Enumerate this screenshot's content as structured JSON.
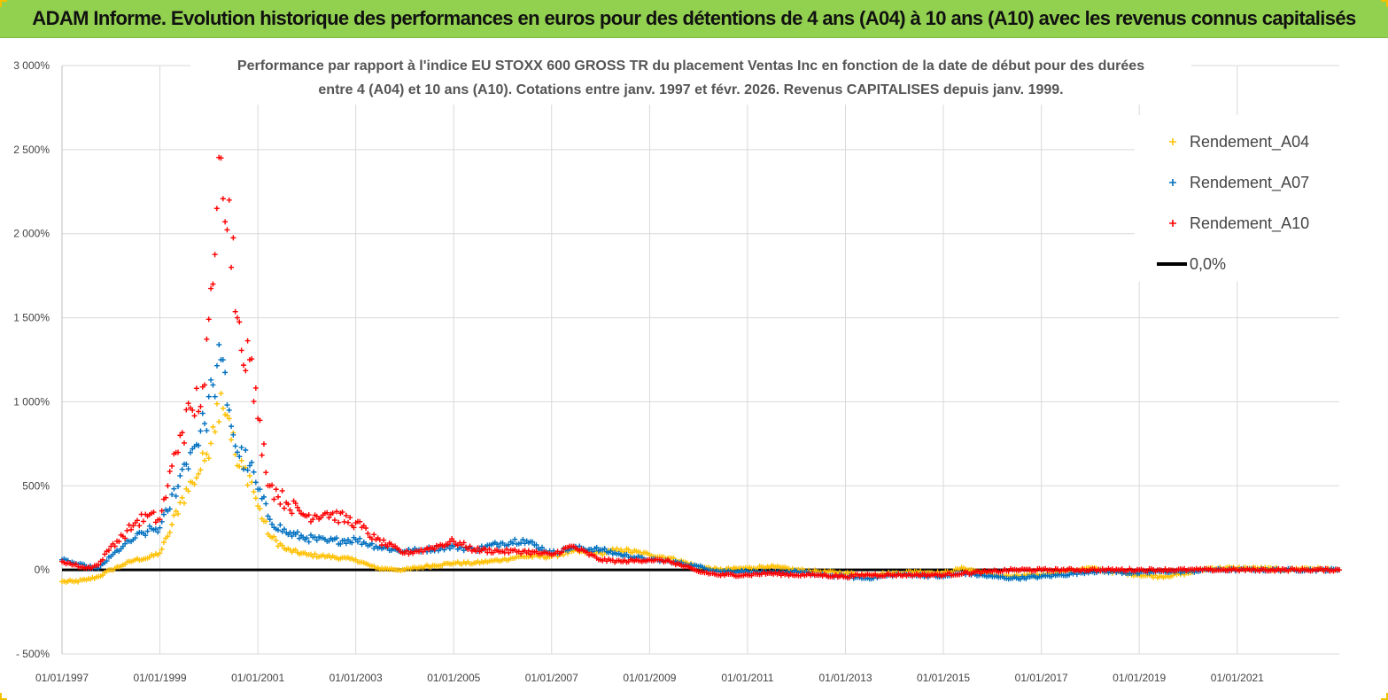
{
  "banner": {
    "title": "ADAM Informe. Evolution historique des performances en euros pour des détentions de 4 ans (A04) à 10 ans (A10) avec les revenus connus capitalisés",
    "background": "#92d050"
  },
  "chart_data": {
    "type": "scatter",
    "title_lines": [
      "Performance par rapport à l'indice EU STOXX 600 GROSS TR  du placement Ventas Inc en fonction de la date de début pour des durées",
      "entre 4 (A04) et 10 ans (A10).  Cotations entre janv. 1997 et févr. 2026. Revenus  CAPITALISES depuis janv. 1999."
    ],
    "xlabel": "",
    "ylabel": "",
    "x_range": [
      "1997-01-01",
      "2023-02-01"
    ],
    "ylim": [
      -500,
      3000
    ],
    "y_ticks": [
      -500,
      0,
      500,
      1000,
      1500,
      2000,
      2500,
      3000
    ],
    "y_tick_labels": [
      "- 500%",
      "0%",
      "500%",
      "1 000%",
      "1 500%",
      "2 000%",
      "2 500%",
      "3 000%"
    ],
    "x_ticks": [
      "1997-01-01",
      "1999-01-01",
      "2001-01-01",
      "2003-01-01",
      "2005-01-01",
      "2007-01-01",
      "2009-01-01",
      "2011-01-01",
      "2013-01-01",
      "2015-01-01",
      "2017-01-01",
      "2019-01-01",
      "2021-01-01"
    ],
    "x_tick_labels": [
      "01/01/1997",
      "01/01/1999",
      "01/01/2001",
      "01/01/2003",
      "01/01/2005",
      "01/01/2007",
      "01/01/2009",
      "01/01/2011",
      "01/01/2013",
      "01/01/2015",
      "01/01/2017",
      "01/01/2019",
      "01/01/2021"
    ],
    "grid": true,
    "legend_position": "top-right",
    "legend": [
      {
        "name": "Rendement_A04",
        "marker": "plus",
        "color": "#ffc000"
      },
      {
        "name": "Rendement_A07",
        "marker": "plus",
        "color": "#0070c0"
      },
      {
        "name": "Rendement_A10",
        "marker": "plus",
        "color": "#ff0000"
      },
      {
        "name": "0,0%",
        "marker": "line",
        "color": "#000000"
      }
    ],
    "reference_line": {
      "y": 0,
      "color": "#000000"
    },
    "series": [
      {
        "name": "Rendement_A04",
        "color": "#ffc000",
        "points": [
          [
            "1997-01-01",
            -70
          ],
          [
            "1997-04-01",
            -70
          ],
          [
            "1997-07-01",
            -60
          ],
          [
            "1997-10-01",
            -40
          ],
          [
            "1998-01-01",
            0
          ],
          [
            "1998-04-01",
            30
          ],
          [
            "1998-07-01",
            60
          ],
          [
            "1998-10-01",
            70
          ],
          [
            "1999-01-01",
            100
          ],
          [
            "1999-03-01",
            200
          ],
          [
            "1999-06-01",
            400
          ],
          [
            "1999-09-01",
            520
          ],
          [
            "1999-12-01",
            650
          ],
          [
            "2000-02-01",
            850
          ],
          [
            "2000-04-01",
            1050
          ],
          [
            "2000-06-01",
            900
          ],
          [
            "2000-08-01",
            620
          ],
          [
            "2000-11-01",
            560
          ],
          [
            "2001-01-01",
            380
          ],
          [
            "2001-04-01",
            200
          ],
          [
            "2001-08-01",
            120
          ],
          [
            "2002-01-01",
            90
          ],
          [
            "2002-06-01",
            80
          ],
          [
            "2003-01-01",
            60
          ],
          [
            "2003-06-01",
            10
          ],
          [
            "2004-01-01",
            0
          ],
          [
            "2004-06-01",
            20
          ],
          [
            "2005-01-01",
            40
          ],
          [
            "2005-06-01",
            40
          ],
          [
            "2006-01-01",
            60
          ],
          [
            "2006-06-01",
            80
          ],
          [
            "2007-01-01",
            80
          ],
          [
            "2007-06-01",
            110
          ],
          [
            "2008-01-01",
            100
          ],
          [
            "2008-06-01",
            120
          ],
          [
            "2009-01-01",
            90
          ],
          [
            "2009-06-01",
            70
          ],
          [
            "2010-01-01",
            20
          ],
          [
            "2010-06-01",
            0
          ],
          [
            "2011-01-01",
            10
          ],
          [
            "2011-06-01",
            20
          ],
          [
            "2012-01-01",
            0
          ],
          [
            "2012-06-01",
            -10
          ],
          [
            "2013-01-01",
            -20
          ],
          [
            "2013-06-01",
            -30
          ],
          [
            "2014-01-01",
            -20
          ],
          [
            "2014-06-01",
            -10
          ],
          [
            "2015-01-01",
            -20
          ],
          [
            "2015-06-01",
            10
          ],
          [
            "2016-01-01",
            -30
          ],
          [
            "2016-06-01",
            -40
          ],
          [
            "2017-01-01",
            -30
          ],
          [
            "2017-06-01",
            -10
          ],
          [
            "2018-01-01",
            10
          ],
          [
            "2018-06-01",
            -10
          ],
          [
            "2019-01-01",
            -30
          ],
          [
            "2019-06-01",
            -40
          ],
          [
            "2020-01-01",
            -20
          ],
          [
            "2020-06-01",
            10
          ],
          [
            "2021-01-01",
            10
          ],
          [
            "2021-06-01",
            10
          ],
          [
            "2022-01-01",
            0
          ],
          [
            "2022-06-01",
            10
          ],
          [
            "2023-02-01",
            0
          ]
        ]
      },
      {
        "name": "Rendement_A07",
        "color": "#0070c0",
        "points": [
          [
            "1997-01-01",
            60
          ],
          [
            "1997-04-01",
            40
          ],
          [
            "1997-07-01",
            20
          ],
          [
            "1997-10-01",
            10
          ],
          [
            "1998-01-01",
            80
          ],
          [
            "1998-04-01",
            140
          ],
          [
            "1998-07-01",
            190
          ],
          [
            "1998-10-01",
            230
          ],
          [
            "1999-01-01",
            250
          ],
          [
            "1999-03-01",
            350
          ],
          [
            "1999-06-01",
            560
          ],
          [
            "1999-09-01",
            720
          ],
          [
            "1999-12-01",
            870
          ],
          [
            "2000-02-01",
            1100
          ],
          [
            "2000-04-01",
            1250
          ],
          [
            "2000-06-01",
            950
          ],
          [
            "2000-08-01",
            700
          ],
          [
            "2000-11-01",
            620
          ],
          [
            "2001-01-01",
            480
          ],
          [
            "2001-04-01",
            300
          ],
          [
            "2001-08-01",
            220
          ],
          [
            "2002-01-01",
            190
          ],
          [
            "2002-06-01",
            170
          ],
          [
            "2003-01-01",
            180
          ],
          [
            "2003-06-01",
            140
          ],
          [
            "2004-01-01",
            110
          ],
          [
            "2004-06-01",
            120
          ],
          [
            "2005-01-01",
            140
          ],
          [
            "2005-06-01",
            120
          ],
          [
            "2006-01-01",
            160
          ],
          [
            "2006-06-01",
            180
          ],
          [
            "2007-01-01",
            100
          ],
          [
            "2007-06-01",
            130
          ],
          [
            "2008-01-01",
            120
          ],
          [
            "2008-06-01",
            90
          ],
          [
            "2009-01-01",
            60
          ],
          [
            "2009-06-01",
            50
          ],
          [
            "2010-01-01",
            20
          ],
          [
            "2010-06-01",
            -10
          ],
          [
            "2011-01-01",
            -10
          ],
          [
            "2011-06-01",
            -20
          ],
          [
            "2012-01-01",
            -10
          ],
          [
            "2012-06-01",
            -30
          ],
          [
            "2013-01-01",
            -40
          ],
          [
            "2013-06-01",
            -50
          ],
          [
            "2014-01-01",
            -30
          ],
          [
            "2014-06-01",
            -30
          ],
          [
            "2015-01-01",
            -40
          ],
          [
            "2015-06-01",
            -20
          ],
          [
            "2016-01-01",
            -40
          ],
          [
            "2016-06-01",
            -50
          ],
          [
            "2017-01-01",
            -40
          ],
          [
            "2017-06-01",
            -30
          ],
          [
            "2018-01-01",
            -10
          ],
          [
            "2018-06-01",
            -10
          ],
          [
            "2019-01-01",
            -20
          ],
          [
            "2019-06-01",
            -10
          ],
          [
            "2020-01-01",
            -10
          ],
          [
            "2020-06-01",
            0
          ],
          [
            "2021-01-01",
            0
          ],
          [
            "2021-06-01",
            0
          ],
          [
            "2022-01-01",
            0
          ],
          [
            "2022-06-01",
            0
          ],
          [
            "2023-02-01",
            0
          ]
        ]
      },
      {
        "name": "Rendement_A10",
        "color": "#ff0000",
        "points": [
          [
            "1997-01-01",
            50
          ],
          [
            "1997-04-01",
            30
          ],
          [
            "1997-07-01",
            10
          ],
          [
            "1997-10-01",
            30
          ],
          [
            "1998-01-01",
            140
          ],
          [
            "1998-04-01",
            200
          ],
          [
            "1998-07-01",
            280
          ],
          [
            "1998-10-01",
            320
          ],
          [
            "1999-01-01",
            300
          ],
          [
            "1999-03-01",
            500
          ],
          [
            "1999-06-01",
            800
          ],
          [
            "1999-09-01",
            950
          ],
          [
            "1999-12-01",
            1100
          ],
          [
            "2000-02-01",
            1700
          ],
          [
            "2000-03-01",
            2150
          ],
          [
            "2000-04-01",
            2450
          ],
          [
            "2000-06-01",
            2200
          ],
          [
            "2000-08-01",
            1500
          ],
          [
            "2000-11-01",
            1250
          ],
          [
            "2001-01-01",
            900
          ],
          [
            "2001-04-01",
            500
          ],
          [
            "2001-08-01",
            400
          ],
          [
            "2002-01-01",
            320
          ],
          [
            "2002-06-01",
            340
          ],
          [
            "2003-01-01",
            280
          ],
          [
            "2003-06-01",
            180
          ],
          [
            "2004-01-01",
            100
          ],
          [
            "2004-06-01",
            120
          ],
          [
            "2005-01-01",
            170
          ],
          [
            "2005-06-01",
            120
          ],
          [
            "2006-01-01",
            110
          ],
          [
            "2006-06-01",
            110
          ],
          [
            "2007-01-01",
            90
          ],
          [
            "2007-06-01",
            140
          ],
          [
            "2008-01-01",
            60
          ],
          [
            "2008-06-01",
            50
          ],
          [
            "2009-01-01",
            60
          ],
          [
            "2009-06-01",
            50
          ],
          [
            "2010-01-01",
            -10
          ],
          [
            "2010-06-01",
            -30
          ],
          [
            "2011-01-01",
            -30
          ],
          [
            "2011-06-01",
            -20
          ],
          [
            "2012-01-01",
            -30
          ],
          [
            "2012-06-01",
            -30
          ],
          [
            "2013-01-01",
            -40
          ],
          [
            "2013-06-01",
            -30
          ],
          [
            "2014-01-01",
            -30
          ],
          [
            "2014-06-01",
            -30
          ],
          [
            "2015-01-01",
            -30
          ],
          [
            "2015-06-01",
            -20
          ],
          [
            "2016-01-01",
            -10
          ],
          [
            "2016-06-01",
            0
          ],
          [
            "2017-01-01",
            0
          ],
          [
            "2017-06-01",
            0
          ],
          [
            "2018-01-01",
            0
          ],
          [
            "2018-06-01",
            0
          ],
          [
            "2019-01-01",
            0
          ],
          [
            "2019-06-01",
            0
          ],
          [
            "2020-01-01",
            0
          ],
          [
            "2020-06-01",
            0
          ],
          [
            "2021-01-01",
            0
          ],
          [
            "2021-06-01",
            0
          ],
          [
            "2022-01-01",
            0
          ],
          [
            "2022-06-01",
            0
          ],
          [
            "2023-02-01",
            0
          ]
        ]
      }
    ]
  }
}
